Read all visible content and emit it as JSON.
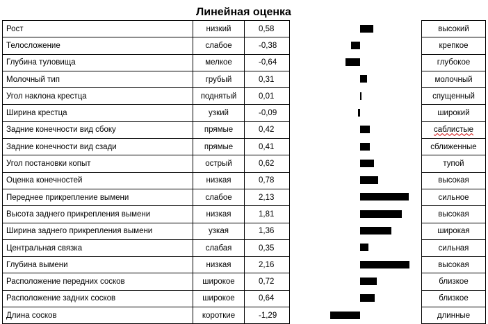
{
  "title": "Линейная оценка",
  "chart_data": {
    "type": "bar",
    "orientation": "horizontal",
    "title": "Линейная оценка",
    "categories": [
      "Рост",
      "Телосложение",
      "Глубина туловища",
      "Молочный тип",
      "Угол наклона крестца",
      "Ширина крестца",
      "Задние конечности вид сбоку",
      "Задние конечности вид сзади",
      "Угол постановки копыт",
      "Оценка конечностей",
      "Переднее прикрепление вымени",
      "Высота заднего прикрепления вымени",
      "Ширина заднего прикрепления вымени",
      "Центральная связка",
      "Глубина вымени",
      "Расположение передних сосков",
      "Расположение задних сосков",
      "Длина сосков"
    ],
    "values": [
      0.58,
      -0.38,
      -0.64,
      0.31,
      0.01,
      -0.09,
      0.42,
      0.41,
      0.62,
      0.78,
      2.13,
      1.81,
      1.36,
      0.35,
      2.16,
      0.72,
      0.64,
      -1.29
    ]
  },
  "rows": [
    {
      "trait": "Рост",
      "low": "низкий",
      "value": "0,58",
      "high": "высокий"
    },
    {
      "trait": "Телосложение",
      "low": "слабое",
      "value": "-0,38",
      "high": "крепкое"
    },
    {
      "trait": "Глубина туловища",
      "low": "мелкое",
      "value": "-0,64",
      "high": "глубокое"
    },
    {
      "trait": "Молочный тип",
      "low": "грубый",
      "value": "0,31",
      "high": "молочный"
    },
    {
      "trait": "Угол наклона крестца",
      "low": "поднятый",
      "value": "0,01",
      "high": "спущенный"
    },
    {
      "trait": "Ширина крестца",
      "low": "узкий",
      "value": "-0,09",
      "high": "широкий"
    },
    {
      "trait": "Задние конечности вид сбоку",
      "low": "прямые",
      "value": "0,42",
      "high": "саблистые"
    },
    {
      "trait": "Задние конечности вид сзади",
      "low": "прямые",
      "value": "0,41",
      "high": "сближенные"
    },
    {
      "trait": "Угол постановки копыт",
      "low": "острый",
      "value": "0,62",
      "high": "тупой"
    },
    {
      "trait": "Оценка конечностей",
      "low": "низкая",
      "value": "0,78",
      "high": "высокая"
    },
    {
      "trait": "Переднее прикрепление вымени",
      "low": "слабое",
      "value": "2,13",
      "high": "сильное"
    },
    {
      "trait": "Высота заднего прикрепления вымени",
      "low": "низкая",
      "value": "1,81",
      "high": "высокая"
    },
    {
      "trait": "Ширина заднего прикрепления вымени",
      "low": "узкая",
      "value": "1,36",
      "high": "широкая"
    },
    {
      "trait": "Центральная связка",
      "low": "слабая",
      "value": "0,35",
      "high": "сильная"
    },
    {
      "trait": "Глубина вымени",
      "low": "низкая",
      "value": "2,16",
      "high": "высокая"
    },
    {
      "trait": "Расположение передних сосков",
      "low": "широкое",
      "value": "0,72",
      "high": "близкое"
    },
    {
      "trait": "Расположение задних сосков",
      "low": "широкое",
      "value": "0,64",
      "high": "близкое"
    },
    {
      "trait": "Длина сосков",
      "low": "короткие",
      "value": "-1,29",
      "high": "длинные"
    }
  ],
  "colors": {
    "bar": "#000000",
    "grid": "#000000",
    "spellcheck_underline": "#d00000"
  }
}
